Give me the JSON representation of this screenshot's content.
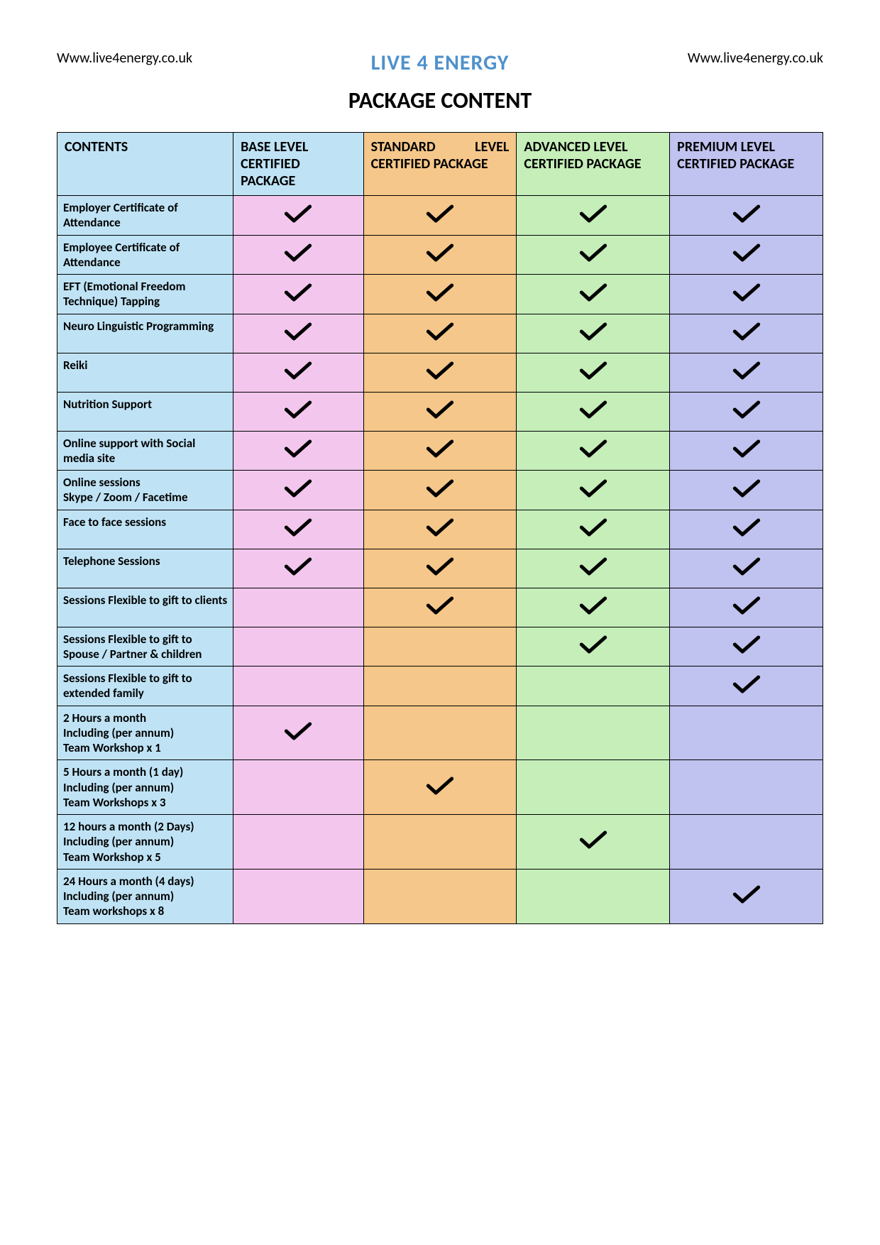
{
  "header": {
    "url_left": "Www.live4energy.co.uk",
    "brand": "LIVE 4 ENERGY",
    "url_right": "Www.live4energy.co.uk"
  },
  "title": "PACKAGE CONTENT",
  "colors": {
    "header_bg": [
      "#bfe3f5",
      "#bfe3f5",
      "#f5c78a",
      "#c5eeb9",
      "#c0c2ef"
    ],
    "body_col_bg": [
      "#bfe3f5",
      "#f3c7ed",
      "#f5c78a",
      "#c5eeb9",
      "#c0c2ef"
    ],
    "brand_color": "#4f91cd",
    "check_color": "#000000",
    "border_color": "#000000"
  },
  "columns": [
    "CONTENTS",
    "BASE LEVEL CERTIFIED PACKAGE",
    "STANDARD LEVEL CERTIFIED PACKAGE",
    "ADVANCED LEVEL\nCERTIFIED PACKAGE",
    "PREMIUM LEVEL CERTIFIED PACKAGE"
  ],
  "rows": [
    {
      "label": "Employer Certificate of Attendance",
      "checks": [
        true,
        true,
        true,
        true
      ]
    },
    {
      "label": "Employee Certificate of Attendance",
      "checks": [
        true,
        true,
        true,
        true
      ]
    },
    {
      "label": "EFT (Emotional Freedom Technique)  Tapping",
      "checks": [
        true,
        true,
        true,
        true
      ]
    },
    {
      "label": "Neuro Linguistic Programming",
      "checks": [
        true,
        true,
        true,
        true
      ]
    },
    {
      "label": "Reiki",
      "checks": [
        true,
        true,
        true,
        true
      ]
    },
    {
      "label": "Nutrition Support",
      "checks": [
        true,
        true,
        true,
        true
      ]
    },
    {
      "label": "Online support with Social media site",
      "checks": [
        true,
        true,
        true,
        true
      ]
    },
    {
      "label": "Online sessions\nSkype / Zoom / Facetime",
      "checks": [
        true,
        true,
        true,
        true
      ]
    },
    {
      "label": "Face to face sessions",
      "checks": [
        true,
        true,
        true,
        true
      ]
    },
    {
      "label": "Telephone Sessions",
      "checks": [
        true,
        true,
        true,
        true
      ]
    },
    {
      "label": "Sessions Flexible to gift to clients",
      "checks": [
        false,
        true,
        true,
        true
      ]
    },
    {
      "label": "Sessions Flexible to gift to Spouse / Partner & children",
      "checks": [
        false,
        false,
        true,
        true
      ]
    },
    {
      "label": "Sessions Flexible to gift to extended family",
      "checks": [
        false,
        false,
        false,
        true
      ]
    },
    {
      "label": "2 Hours a month\nIncluding (per annum)\nTeam Workshop x 1",
      "checks": [
        true,
        false,
        false,
        false
      ]
    },
    {
      "label": "5 Hours a month (1 day)\nIncluding (per annum)\nTeam Workshops x 3",
      "checks": [
        false,
        true,
        false,
        false
      ]
    },
    {
      "label": "12 hours a month (2 Days)\nIncluding (per annum)\nTeam Workshop x 5",
      "checks": [
        false,
        false,
        true,
        false
      ]
    },
    {
      "label": "24 Hours a month  (4 days)\nIncluding (per annum)\nTeam workshops x 8",
      "checks": [
        false,
        false,
        false,
        true
      ]
    }
  ]
}
